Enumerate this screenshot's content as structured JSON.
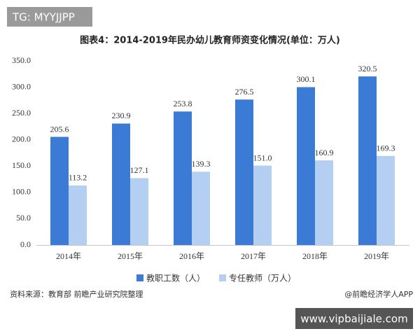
{
  "tag": "TG: MYYJJPP",
  "chart_data": {
    "type": "bar",
    "title": "图表4：2014-2019年民办幼儿教育师资变化情况(单位：万人)",
    "categories": [
      "2014年",
      "2015年",
      "2016年",
      "2017年",
      "2018年",
      "2019年"
    ],
    "series": [
      {
        "name": "教职工数（人）",
        "color": "#3b7bd6",
        "values": [
          205.6,
          230.9,
          253.8,
          276.5,
          300.1,
          320.5
        ]
      },
      {
        "name": "专任教师（万人）",
        "color": "#b5cff2",
        "values": [
          113.2,
          127.1,
          139.3,
          151.0,
          160.9,
          169.3
        ],
        "value_labels": [
          "113.2",
          "127.1",
          "139.3",
          "151.0",
          "160.9",
          "169.3"
        ]
      }
    ],
    "ylim": [
      0,
      350
    ],
    "yticks": [
      {
        "value": 0,
        "label": "0.0"
      },
      {
        "value": 50,
        "label": "50.0"
      },
      {
        "value": 100,
        "label": "100.0"
      },
      {
        "value": 150,
        "label": "150.0"
      },
      {
        "value": 200,
        "label": "200.0"
      },
      {
        "value": 250,
        "label": "250.0"
      },
      {
        "value": 300,
        "label": "300.0"
      },
      {
        "value": 350,
        "label": "350.0"
      }
    ],
    "grid": false
  },
  "source": "资料来源：教育部 前瞻产业研究院整理",
  "credit": "@前瞻经济学人APP",
  "watermark": "www.vipbaijiale.com"
}
